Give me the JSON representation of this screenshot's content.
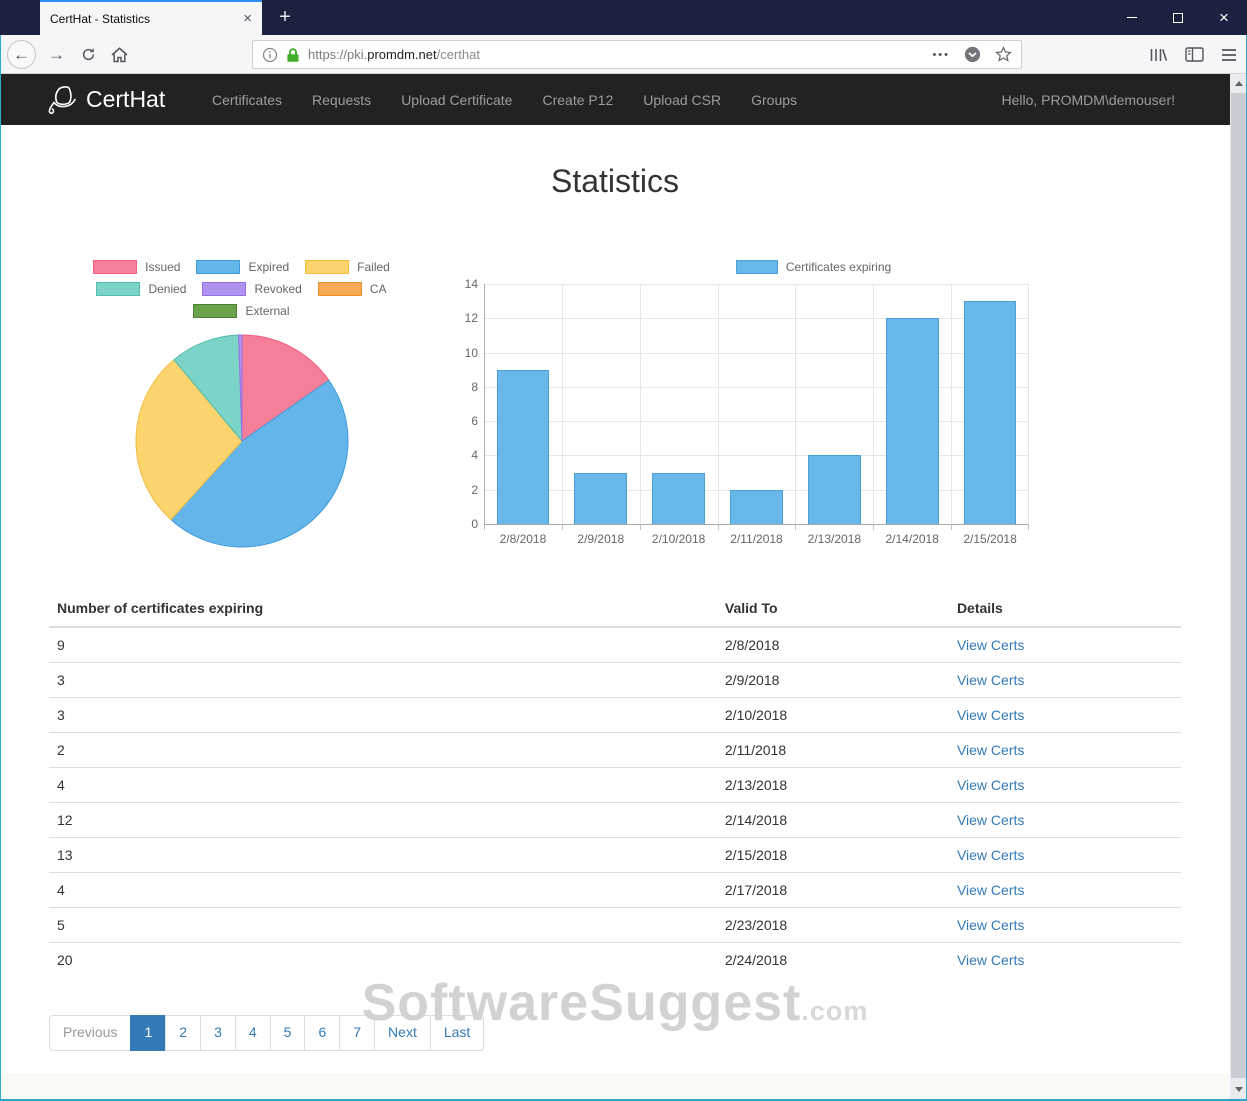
{
  "browser": {
    "tab_title": "CertHat - Statistics",
    "url": {
      "scheme_and_sub": "https://pki.",
      "domain": "promdm.net",
      "path": "/certhat"
    },
    "icons": {
      "back": "←",
      "forward": "→",
      "new_tab": "+",
      "close_tab": "×",
      "close_window": "×",
      "page_actions_dots": "•••"
    }
  },
  "navbar": {
    "brand": "CertHat",
    "items": [
      "Certificates",
      "Requests",
      "Upload Certificate",
      "Create P12",
      "Upload CSR",
      "Groups"
    ],
    "greeting": "Hello, PROMDM\\demouser!"
  },
  "page": {
    "title": "Statistics"
  },
  "chart_data": [
    {
      "type": "pie",
      "labels": [
        "Issued",
        "Expired",
        "Failed",
        "Denied",
        "Revoked",
        "CA",
        "External"
      ],
      "values_percent": [
        15.3,
        46.4,
        27.2,
        10.6,
        0.5,
        0,
        0
      ],
      "colors": [
        "#f57f98",
        "#64b6ea",
        "#fbd46d",
        "#7cd4c8",
        "#b093f0",
        "#f6a954",
        "#69a34a"
      ],
      "border_colors": [
        "#ef5f7e",
        "#3f9bdc",
        "#f3bc42",
        "#53bcad",
        "#9571e2",
        "#ec8f2b",
        "#517f37"
      ],
      "legend_position": "top",
      "start_angle_deg": 0,
      "direction": "clockwise"
    },
    {
      "type": "bar",
      "legend": "Certificates expiring",
      "categories": [
        "2/8/2018",
        "2/9/2018",
        "2/10/2018",
        "2/11/2018",
        "2/13/2018",
        "2/14/2018",
        "2/15/2018"
      ],
      "values": [
        9,
        3,
        3,
        2,
        4,
        12,
        13
      ],
      "ylim": [
        0,
        14
      ],
      "ytick_step": 2,
      "bar_color": "#67b8e9",
      "bar_border_color": "#4ba1d6",
      "grid": true,
      "legend_position": "top"
    }
  ],
  "table": {
    "headers": [
      "Number of certificates expiring",
      "Valid To",
      "Details"
    ],
    "link_label": "View Certs",
    "rows": [
      {
        "count": "9",
        "valid_to": "2/8/2018"
      },
      {
        "count": "3",
        "valid_to": "2/9/2018"
      },
      {
        "count": "3",
        "valid_to": "2/10/2018"
      },
      {
        "count": "2",
        "valid_to": "2/11/2018"
      },
      {
        "count": "4",
        "valid_to": "2/13/2018"
      },
      {
        "count": "12",
        "valid_to": "2/14/2018"
      },
      {
        "count": "13",
        "valid_to": "2/15/2018"
      },
      {
        "count": "4",
        "valid_to": "2/17/2018"
      },
      {
        "count": "5",
        "valid_to": "2/23/2018"
      },
      {
        "count": "20",
        "valid_to": "2/24/2018"
      }
    ]
  },
  "pagination": {
    "items": [
      "Previous",
      "1",
      "2",
      "3",
      "4",
      "5",
      "6",
      "7",
      "Next",
      "Last"
    ],
    "active": "1",
    "disabled": "Previous"
  },
  "watermark": {
    "text": "SoftwareSuggest",
    "suffix": ".com"
  },
  "theme": {
    "titlebar_bg": "#1c2140",
    "tab_accent_blue": "#2f8af3",
    "navbar_bg": "#222222",
    "link_blue": "#337ab7",
    "lock_green": "#3fae2a",
    "window_border_teal": "#35a9cd",
    "text_muted": "#666666",
    "table_border": "#dddddd"
  }
}
